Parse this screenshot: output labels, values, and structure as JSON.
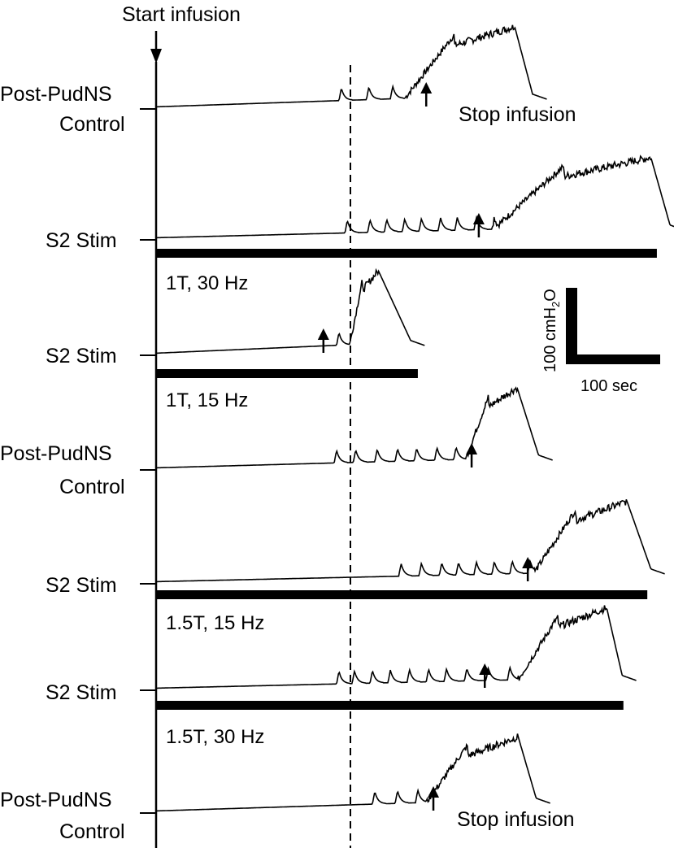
{
  "figure": {
    "start_label": "Start infusion",
    "stop_label": "Stop infusion",
    "scale_bar": {
      "vertical_label": "100 cmH2O",
      "horizontal_label": "100 sec"
    }
  },
  "chart_data": {
    "type": "line",
    "x_unit": "sec",
    "y_unit": "cmH2O",
    "markers": {
      "start_infusion_x": 0,
      "dashed_line_x": 150
    },
    "traces": [
      {
        "label_lines": [
          "Post-PudNS",
          "Control"
        ],
        "stim_bar": null,
        "condition": "",
        "contractions": [
          155,
          178,
          198
        ],
        "rise_start": 208,
        "plateau_end": 300,
        "decay_end": 315,
        "plateau": 78,
        "stop_x": 226
      },
      {
        "label_lines": [
          "S2 Stim"
        ],
        "stim_bar": [
          0,
          419
        ],
        "condition": "1T, 30 Hz",
        "contractions": [
          160,
          179,
          193,
          208,
          222,
          238,
          252,
          268,
          283
        ],
        "rise_start": 282,
        "plateau_end": 414,
        "decay_end": 430,
        "plateau": 78,
        "stop_x": 270
      },
      {
        "label_lines": [
          "S2 Stim"
        ],
        "stim_bar": [
          0,
          219
        ],
        "condition": "1T, 15 Hz",
        "contractions": [
          153
        ],
        "rise_start": 162,
        "plateau_end": 186,
        "decay_end": 213,
        "plateau": 80,
        "stop_x": 140
      },
      {
        "label_lines": [
          "Post-PudNS",
          "Control"
        ],
        "stim_bar": null,
        "condition": "",
        "contractions": [
          151,
          167,
          185,
          202,
          218,
          235,
          251,
          265
        ],
        "rise_start": 259,
        "plateau_end": 302,
        "decay_end": 320,
        "plateau": 78,
        "stop_x": 264
      },
      {
        "label_lines": [
          "S2 Stim"
        ],
        "stim_bar": [
          0,
          411
        ],
        "condition": "1.5T, 15 Hz",
        "contractions": [
          205,
          222,
          239,
          253,
          268,
          283,
          298,
          313
        ],
        "rise_start": 316,
        "plateau_end": 394,
        "decay_end": 414,
        "plateau": 78,
        "stop_x": 311
      },
      {
        "label_lines": [
          "S2 Stim"
        ],
        "stim_bar": [
          0,
          391
        ],
        "condition": "1.5T, 30 Hz",
        "contractions": [
          153,
          166,
          181,
          196,
          212,
          228,
          243,
          260,
          278,
          296
        ],
        "rise_start": 303,
        "plateau_end": 377,
        "decay_end": 390,
        "plateau": 78,
        "stop_x": 275
      },
      {
        "label_lines": [
          "Post-PudNS",
          "Control"
        ],
        "stim_bar": null,
        "condition": "",
        "contractions": [
          183,
          202,
          219
        ],
        "rise_start": 226,
        "plateau_end": 303,
        "decay_end": 318,
        "plateau": 72,
        "stop_x": 232
      }
    ]
  }
}
